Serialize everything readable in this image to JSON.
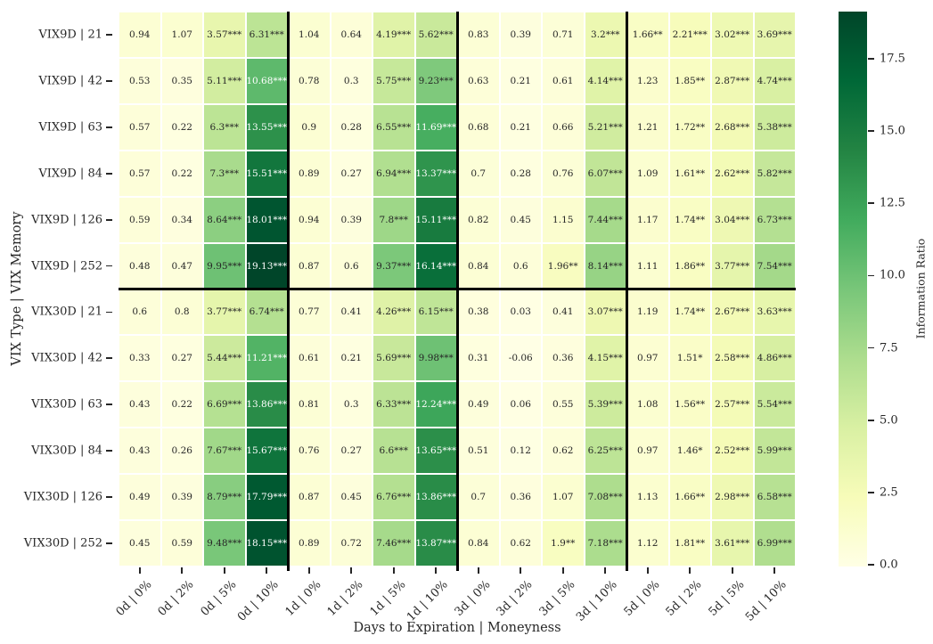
{
  "chart_data": {
    "type": "heatmap",
    "xlabel": "Days to Expiration | Moneyness",
    "ylabel": "VIX Type | VIX Memory",
    "grid": "off",
    "rows": [
      "VIX9D | 21",
      "VIX9D | 42",
      "VIX9D | 63",
      "VIX9D | 84",
      "VIX9D | 126",
      "VIX9D | 252",
      "VIX30D | 21",
      "VIX30D | 42",
      "VIX30D | 63",
      "VIX30D | 84",
      "VIX30D | 126",
      "VIX30D | 252"
    ],
    "columns": [
      "0d | 0%",
      "0d | 2%",
      "0d | 5%",
      "0d | 10%",
      "1d | 0%",
      "1d | 2%",
      "1d | 5%",
      "1d | 10%",
      "3d | 0%",
      "3d | 2%",
      "3d | 5%",
      "3d | 10%",
      "5d | 0%",
      "5d | 2%",
      "5d | 5%",
      "5d | 10%"
    ],
    "cells": [
      [
        "0.94",
        "1.07",
        "3.57***",
        "6.31***",
        "1.04",
        "0.64",
        "4.19***",
        "5.62***",
        "0.83",
        "0.39",
        "0.71",
        "3.2***",
        "1.66**",
        "2.21***",
        "3.02***",
        "3.69***"
      ],
      [
        "0.53",
        "0.35",
        "5.11***",
        "10.68***",
        "0.78",
        "0.3",
        "5.75***",
        "9.23***",
        "0.63",
        "0.21",
        "0.61",
        "4.14***",
        "1.23",
        "1.85**",
        "2.87***",
        "4.74***"
      ],
      [
        "0.57",
        "0.22",
        "6.3***",
        "13.55***",
        "0.9",
        "0.28",
        "6.55***",
        "11.69***",
        "0.68",
        "0.21",
        "0.66",
        "5.21***",
        "1.21",
        "1.72**",
        "2.68***",
        "5.38***"
      ],
      [
        "0.57",
        "0.22",
        "7.3***",
        "15.51***",
        "0.89",
        "0.27",
        "6.94***",
        "13.37***",
        "0.7",
        "0.28",
        "0.76",
        "6.07***",
        "1.09",
        "1.61**",
        "2.62***",
        "5.82***"
      ],
      [
        "0.59",
        "0.34",
        "8.64***",
        "18.01***",
        "0.94",
        "0.39",
        "7.8***",
        "15.11***",
        "0.82",
        "0.45",
        "1.15",
        "7.44***",
        "1.17",
        "1.74**",
        "3.04***",
        "6.73***"
      ],
      [
        "0.48",
        "0.47",
        "9.95***",
        "19.13***",
        "0.87",
        "0.6",
        "9.37***",
        "16.14***",
        "0.84",
        "0.6",
        "1.96**",
        "8.14***",
        "1.11",
        "1.86**",
        "3.77***",
        "7.54***"
      ],
      [
        "0.6",
        "0.8",
        "3.77***",
        "6.74***",
        "0.77",
        "0.41",
        "4.26***",
        "6.15***",
        "0.38",
        "0.03",
        "0.41",
        "3.07***",
        "1.19",
        "1.74**",
        "2.67***",
        "3.63***"
      ],
      [
        "0.33",
        "0.27",
        "5.44***",
        "11.21***",
        "0.61",
        "0.21",
        "5.69***",
        "9.98***",
        "0.31",
        "-0.06",
        "0.36",
        "4.15***",
        "0.97",
        "1.51*",
        "2.58***",
        "4.86***"
      ],
      [
        "0.43",
        "0.22",
        "6.69***",
        "13.86***",
        "0.81",
        "0.3",
        "6.33***",
        "12.24***",
        "0.49",
        "0.06",
        "0.55",
        "5.39***",
        "1.08",
        "1.56**",
        "2.57***",
        "5.54***"
      ],
      [
        "0.43",
        "0.26",
        "7.67***",
        "15.67***",
        "0.76",
        "0.27",
        "6.6***",
        "13.65***",
        "0.51",
        "0.12",
        "0.62",
        "6.25***",
        "0.97",
        "1.46*",
        "2.52***",
        "5.99***"
      ],
      [
        "0.49",
        "0.39",
        "8.79***",
        "17.79***",
        "0.87",
        "0.45",
        "6.76***",
        "13.86***",
        "0.7",
        "0.36",
        "1.07",
        "7.08***",
        "1.13",
        "1.66**",
        "2.98***",
        "6.58***"
      ],
      [
        "0.45",
        "0.59",
        "9.48***",
        "18.15***",
        "0.89",
        "0.72",
        "7.46***",
        "13.87***",
        "0.84",
        "0.62",
        "1.9**",
        "7.18***",
        "1.12",
        "1.81**",
        "3.61***",
        "6.99***"
      ]
    ],
    "separators": {
      "after_columns": [
        4,
        8,
        12
      ],
      "after_rows": [
        6
      ]
    },
    "colorbar": {
      "label": "Information Ratio",
      "ticks": [
        0.0,
        2.5,
        5.0,
        7.5,
        10.0,
        12.5,
        15.0,
        17.5
      ],
      "vmin": -0.06,
      "vmax": 19.13,
      "colormap": "YlGn",
      "colormap_stops": [
        "#ffffe5",
        "#f7fcb9",
        "#d9f0a3",
        "#addd8e",
        "#78c679",
        "#41ab5d",
        "#238443",
        "#006837",
        "#004529"
      ]
    },
    "annotation_text_colors": {
      "light_cells": "#262626",
      "dark_cells": "#ffffff"
    }
  }
}
